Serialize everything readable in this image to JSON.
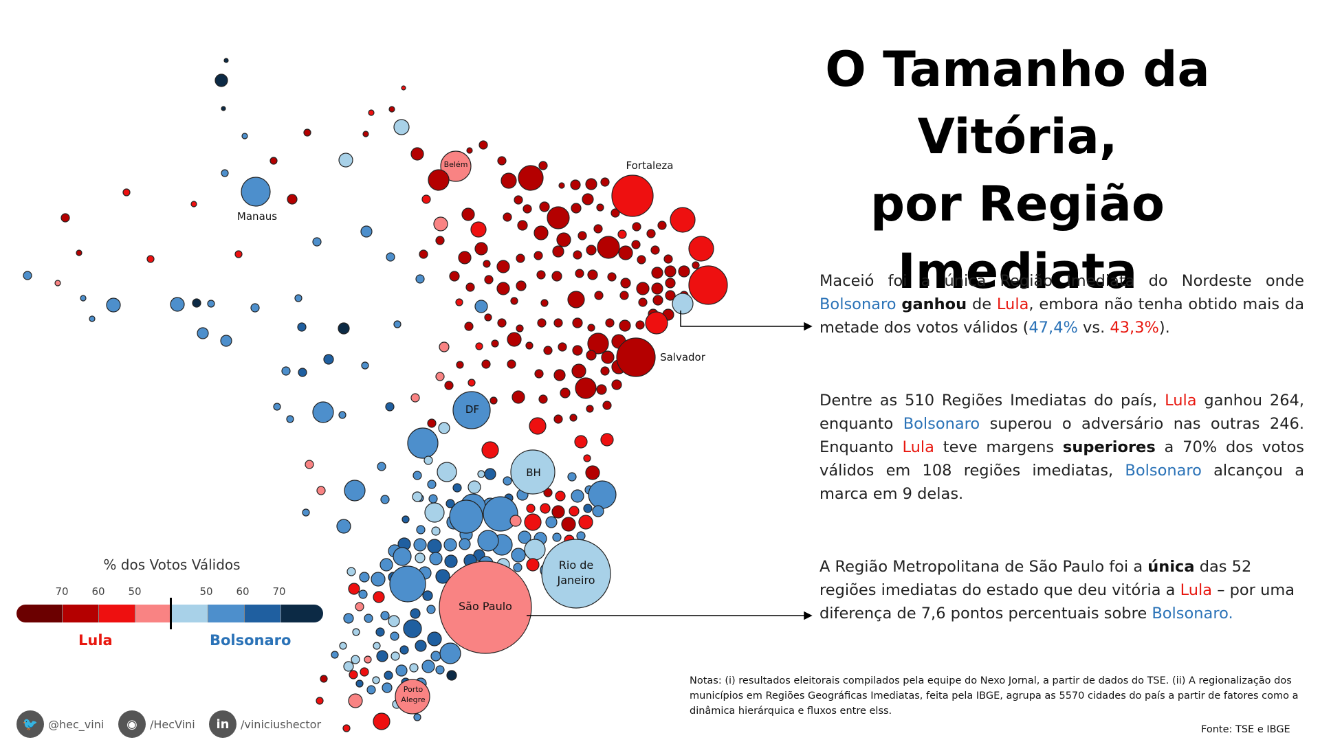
{
  "title": {
    "line1": "O Tamanho da Vitória,",
    "line2": "por Região Imediata"
  },
  "paragraphs": {
    "p1": {
      "a": "Maceió foi a única Região Imediata do Nordeste onde ",
      "bolso": "Bolsonaro",
      "b": " ",
      "won": "ganhou",
      "c": " de ",
      "lula": "Lula",
      "d": ", embora não tenha obtido mais da metade dos votos válidos (",
      "pct_bolso": "47,4%",
      "e": " vs. ",
      "pct_lula": "43,3%",
      "f": ")."
    },
    "p2": {
      "a": "Dentre as 510 Regiões Imediatas do país, ",
      "lula1": "Lula",
      "b": " ganhou 264, enquanto ",
      "bolso1": "Bolsonaro",
      "c": " superou o adversário nas outras 246. Enquanto ",
      "lula2": "Lula",
      "d": " teve margens ",
      "sup": "superiores",
      "e": " a 70% dos votos válidos em 108 regiões imediatas, ",
      "bolso2": "Bolsonaro",
      "f": " alcançou a marca em 9 delas."
    },
    "p3": {
      "a": "A Região Metropolitana de São Paulo foi a ",
      "unica": "única",
      "b": " das 52 regiões imediatas do estado que deu vitória a ",
      "lula": "Lula",
      "c": " – por uma diferença de 7,6 pontos percentuais sobre ",
      "bolso": "Bolsonaro."
    }
  },
  "notes": "Notas: (i) resultados eleitorais compilados pela equipe do Nexo Jornal, a partir de dados do TSE. (ii) A regionalização dos municípios em Regiões Geográficas Imediatas, feita pela IBGE, agrupa as 5570 cidades do país a partir de fatores como a dinâmica hierárquica e fluxos entre elss.",
  "source": "Fonte:  TSE e IBGE",
  "legend": {
    "title": "% dos Votos Válidos",
    "ticks_lula": [
      "70",
      "60",
      "50"
    ],
    "ticks_bolso": [
      "50",
      "60",
      "70"
    ],
    "lula_label": "Lula",
    "bolso_label": "Bolsonaro",
    "colors_lula": [
      "#6b0000",
      "#b40000",
      "#ee1010",
      "#f98383"
    ],
    "colors_bolso": [
      "#a8d1e8",
      "#4d8fcc",
      "#1f5fa0",
      "#0c2a45"
    ]
  },
  "social": {
    "twitter": "@hec_vini",
    "github": "/HecVini",
    "linkedin": "/viniciushector"
  },
  "map_labels": {
    "manaus": "Manaus",
    "belem": "Belém",
    "fortaleza": "Fortaleza",
    "salvador": "Salvador",
    "df": "DF",
    "bh": "BH",
    "rio_l1": "Rio de",
    "rio_l2": "Janeiro",
    "sao_paulo": "São Paulo",
    "porto_l1": "Porto",
    "porto_l2": "Alegre"
  },
  "colors": {
    "lula_strong": "#6b0000",
    "lula_mid": "#b40000",
    "lula": "#ee1010",
    "lula_light": "#f98383",
    "bolso_light": "#a8d1e8",
    "bolso": "#4d8fcc",
    "bolso_mid": "#1f5fa0",
    "bolso_strong": "#0c2a45",
    "text_lula": "#e8170f",
    "text_bolso": "#2a72b7"
  }
}
